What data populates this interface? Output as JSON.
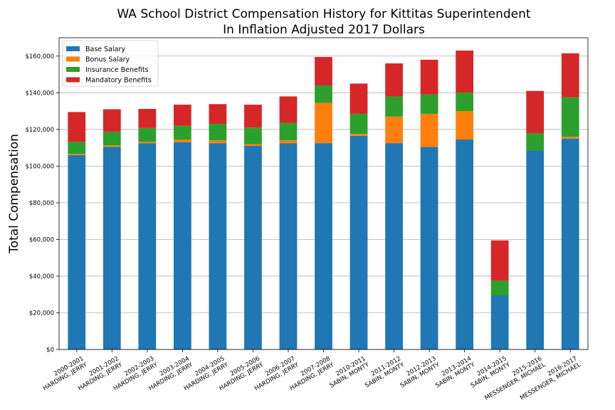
{
  "chart_data": {
    "type": "bar",
    "stacked": true,
    "title": "WA School District Compensation History for Kittitas Superintendent",
    "subtitle": "In Inflation Adjusted 2017 Dollars",
    "xlabel": "",
    "ylabel": "Total Compensation",
    "ylim": [
      0,
      170000
    ],
    "yticks": [
      0,
      20000,
      40000,
      60000,
      80000,
      100000,
      120000,
      140000,
      160000
    ],
    "ytick_labels": [
      "$0",
      "$20,000",
      "$40,000",
      "$60,000",
      "$80,000",
      "$100,000",
      "$120,000",
      "$140,000",
      "$160,000"
    ],
    "grid": "horizontal",
    "legend_position": "top-left",
    "categories": [
      [
        "2000-2001",
        "HARDING, JERRY"
      ],
      [
        "2001-2002",
        "HARDING, JERRY"
      ],
      [
        "2002-2003",
        "HARDING, JERRY"
      ],
      [
        "2003-2004",
        "HARDING, JERRY"
      ],
      [
        "2004-2005",
        "HARDING, JERRY"
      ],
      [
        "2005-2006",
        "HARDING, JERRY"
      ],
      [
        "2006-2007",
        "HARDING, JERRY"
      ],
      [
        "2007-2008",
        "HARDING, JERRY"
      ],
      [
        "2010-2011",
        "SABIN, MONTY"
      ],
      [
        "2011-2012",
        "SABIN, MONTY"
      ],
      [
        "2012-2013",
        "SABIN, MONTY"
      ],
      [
        "2013-2014",
        "SABIN, MONTY"
      ],
      [
        "2014-2015",
        "SABIN, MONTY"
      ],
      [
        "2015-2016",
        "MESSENGER, MICHAEL"
      ],
      [
        "2016-2017",
        "MESSENGER, MICHAEL"
      ]
    ],
    "series": [
      {
        "name": "Base Salary",
        "color": "#1f77b4",
        "values": [
          106000,
          110500,
          112500,
          113000,
          112500,
          111000,
          112500,
          112500,
          116500,
          112500,
          110500,
          114500,
          29500,
          108500,
          115000
        ]
      },
      {
        "name": "Bonus Salary",
        "color": "#ff7f0e",
        "values": [
          700,
          800,
          800,
          1500,
          1500,
          1000,
          1500,
          22000,
          1000,
          14500,
          18000,
          15500,
          0,
          0,
          1000
        ]
      },
      {
        "name": "Insurance Benefits",
        "color": "#2ca02c",
        "values": [
          6500,
          7500,
          7500,
          7500,
          9000,
          9000,
          9500,
          9500,
          11000,
          11000,
          10500,
          10000,
          8000,
          9500,
          21500
        ]
      },
      {
        "name": "Mandatory Benefits",
        "color": "#d62728",
        "values": [
          16300,
          12200,
          10400,
          11500,
          10800,
          12500,
          14500,
          15500,
          16500,
          18000,
          19000,
          23000,
          22000,
          23000,
          24000
        ]
      }
    ]
  }
}
